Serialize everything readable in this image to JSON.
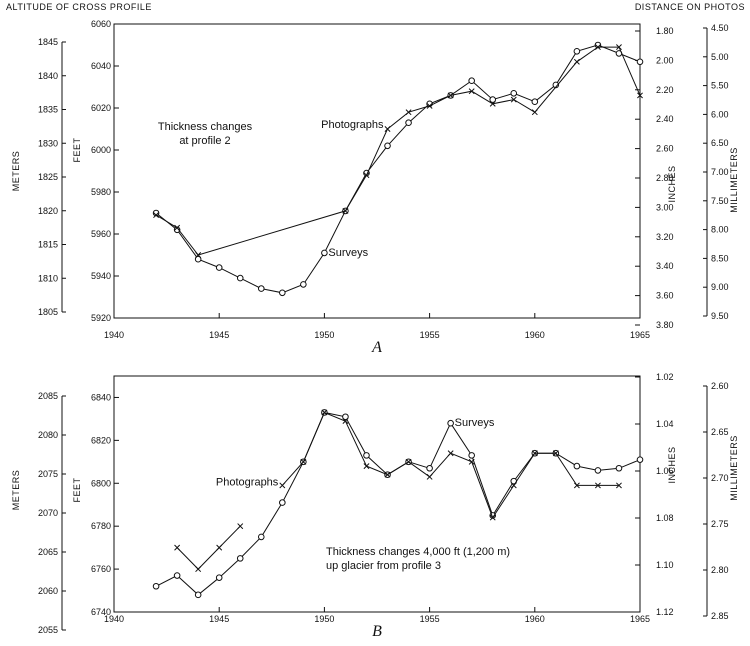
{
  "header": {
    "left": "ALTITUDE OF CROSS PROFILE",
    "right": "DISTANCE ON PHOTOS"
  },
  "chart_data": [
    {
      "type": "line",
      "panel_label": "A",
      "annotation": [
        "Thickness changes",
        "at profile 2"
      ],
      "x_ticks": [
        "1940",
        "1945",
        "1950",
        "1955",
        "1960",
        "1965"
      ],
      "xlim": [
        1940,
        1965
      ],
      "left_outer_label": "METERS",
      "left_inner_label": "FEET",
      "right_inner_label": "INCHES",
      "right_outer_label": "MILLIMETERS",
      "ylim": [
        5920,
        6060
      ],
      "meters_ticks": [
        "1845",
        "1840",
        "1835",
        "1830",
        "1825",
        "1820",
        "1815",
        "1810",
        "1805"
      ],
      "feet_ticks": [
        "6060",
        "6040",
        "6020",
        "6000",
        "5980",
        "5960",
        "5940",
        "5920"
      ],
      "inches_ticks": [
        "1.80",
        "2.00",
        "2.20",
        "2.40",
        "2.60",
        "2.80",
        "3.00",
        "3.20",
        "3.40",
        "3.60",
        "3.80"
      ],
      "millimeters_ticks": [
        "4.50",
        "5.00",
        "5.50",
        "6.00",
        "6.50",
        "7.00",
        "7.50",
        "8.00",
        "8.50",
        "9.00",
        "9.50"
      ],
      "series": [
        {
          "name": "Surveys",
          "marker": "circle",
          "x": [
            1942,
            1943,
            1944,
            1945,
            1946,
            1947,
            1948,
            1949,
            1950,
            1951,
            1952,
            1953,
            1954,
            1955,
            1956,
            1957,
            1958,
            1959,
            1960,
            1961,
            1962,
            1963,
            1964,
            1965
          ],
          "y": [
            5970,
            5962,
            5948,
            5944,
            5939,
            5934,
            5932,
            5936,
            5951,
            5971,
            5989,
            6002,
            6013,
            6022,
            6026,
            6033,
            6024,
            6027,
            6023,
            6031,
            6047,
            6050,
            6046,
            6042
          ]
        },
        {
          "name": "Photographs",
          "marker": "x",
          "x": [
            1942,
            1943,
            1944,
            1951,
            1952,
            1953,
            1954,
            1955,
            1956,
            1957,
            1958,
            1959,
            1960,
            1962,
            1963,
            1964,
            1965
          ],
          "y": [
            5969,
            5963,
            5950,
            5971,
            5988,
            6010,
            6018,
            6021,
            6026,
            6028,
            6022,
            6024,
            6018,
            6042,
            6049,
            6049,
            6026
          ]
        }
      ]
    },
    {
      "type": "line",
      "panel_label": "B",
      "annotation": [
        "Thickness changes 4,000 ft (1,200 m)",
        "up glacier from profile 3"
      ],
      "x_ticks": [
        "1940",
        "1945",
        "1950",
        "1955",
        "1960",
        "1965"
      ],
      "xlim": [
        1940,
        1965
      ],
      "left_outer_label": "METERS",
      "left_inner_label": "FEET",
      "right_inner_label": "INCHES",
      "right_outer_label": "MILLIMETERS",
      "ylim": [
        6740,
        6850
      ],
      "meters_ticks": [
        "2085",
        "2080",
        "2075",
        "2070",
        "2065",
        "2060",
        "2055"
      ],
      "feet_ticks": [
        "6840",
        "6820",
        "6800",
        "6780",
        "6760",
        "6740"
      ],
      "inches_ticks": [
        "1.02",
        "1.04",
        "1.06",
        "1.08",
        "1.10",
        "1.12"
      ],
      "millimeters_ticks": [
        "2.60",
        "2.65",
        "2.70",
        "2.75",
        "2.80",
        "2.85"
      ],
      "series": [
        {
          "name": "Surveys",
          "marker": "circle",
          "x": [
            1942,
            1943,
            1944,
            1945,
            1946,
            1947,
            1948,
            1949,
            1950,
            1951,
            1952,
            1953,
            1954,
            1955,
            1956,
            1957,
            1958,
            1959,
            1960,
            1961,
            1962,
            1963,
            1964,
            1965
          ],
          "y": [
            6752,
            6757,
            6748,
            6756,
            6765,
            6775,
            6791,
            6810,
            6833,
            6831,
            6813,
            6804,
            6810,
            6807,
            6828,
            6813,
            6785,
            6801,
            6814,
            6814,
            6808,
            6806,
            6807,
            6811
          ]
        },
        {
          "name": "Photographs",
          "marker": "x",
          "x": [
            1943,
            1944,
            1945,
            1946
          ],
          "y": [
            6770,
            6760,
            6770,
            6780
          ]
        },
        {
          "name": "Photographs",
          "marker": "x",
          "x": [
            1948,
            1949,
            1950,
            1951,
            1952,
            1953,
            1954,
            1955,
            1956,
            1957,
            1958,
            1959,
            1960,
            1961,
            1962,
            1963,
            1964
          ],
          "y": [
            6799,
            6810,
            6833,
            6829,
            6808,
            6804,
            6810,
            6803,
            6814,
            6810,
            6784,
            6799,
            6814,
            6814,
            6799,
            6799,
            6799
          ]
        }
      ]
    }
  ]
}
